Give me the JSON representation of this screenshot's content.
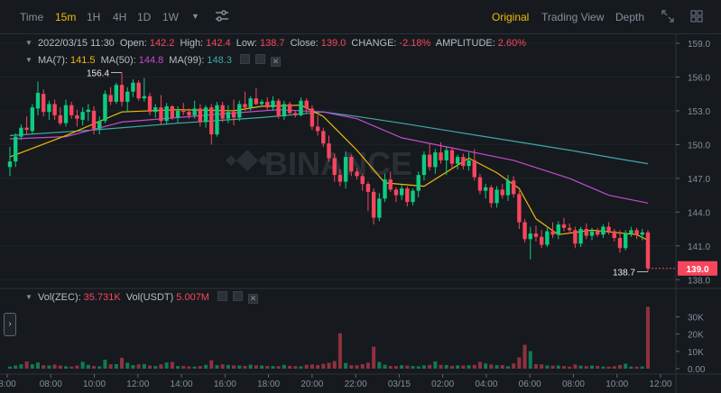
{
  "toolbar": {
    "intervals": [
      {
        "label": "Time",
        "active": false
      },
      {
        "label": "15m",
        "active": true
      },
      {
        "label": "1H",
        "active": false
      },
      {
        "label": "4H",
        "active": false
      },
      {
        "label": "1D",
        "active": false
      },
      {
        "label": "1W",
        "active": false
      }
    ],
    "views": [
      {
        "label": "Original",
        "active": true
      },
      {
        "label": "Trading View",
        "active": false
      },
      {
        "label": "Depth",
        "active": false
      }
    ]
  },
  "ohlc_legend": {
    "datetime": "2022/03/15 11:30",
    "open_label": "Open:",
    "open": "142.2",
    "high_label": "High:",
    "high": "142.4",
    "low_label": "Low:",
    "low": "138.7",
    "close_label": "Close:",
    "close": "139.0",
    "change_label": "CHANGE:",
    "change": "-2.18%",
    "amplitude_label": "AMPLITUDE:",
    "amplitude": "2.60%"
  },
  "ma_legend": {
    "ma7_label": "MA(7):",
    "ma7": "141.5",
    "ma50_label": "MA(50):",
    "ma50": "144.8",
    "ma99_label": "MA(99):",
    "ma99": "148.3"
  },
  "volume_legend": {
    "vol_zec_label": "Vol(ZEC):",
    "vol_zec": "35.731K",
    "vol_usdt_label": "Vol(USDT)",
    "vol_usdt": "5.007M"
  },
  "watermark": "BINANCE",
  "colors": {
    "up": "#0ecb81",
    "down": "#f6465d",
    "ma7": "#f0b90b",
    "ma50": "#c34bd1",
    "ma99": "#41a8a6",
    "accent": "#f0b90b",
    "background": "#161a1e"
  },
  "chart_data": [
    {
      "type": "candlestick",
      "symbol": "ZEC/USDT",
      "interval": "15m",
      "y_ticks": [
        "159.0",
        "156.0",
        "153.0",
        "150.0",
        "147.0",
        "144.0",
        "141.0",
        "138.0"
      ],
      "ylim": [
        137.3,
        159.8
      ],
      "x_ticks": [
        "8:00",
        "08:00",
        "10:00",
        "12:00",
        "14:00",
        "16:00",
        "18:00",
        "20:00",
        "22:00",
        "03/15",
        "02:00",
        "04:00",
        "06:00",
        "08:00",
        "10:00",
        "12:00"
      ],
      "last_price": "139.0",
      "max_label": "156.4",
      "min_label": "138.7",
      "candles": [
        [
          148.0,
          149.8,
          147.2,
          148.5
        ],
        [
          148.5,
          151.0,
          148.0,
          150.7
        ],
        [
          150.7,
          151.8,
          150.4,
          151.5
        ],
        [
          151.5,
          152.5,
          150.9,
          151.3
        ],
        [
          151.2,
          153.6,
          150.9,
          153.3
        ],
        [
          153.2,
          155.6,
          152.6,
          154.6
        ],
        [
          154.5,
          154.9,
          152.5,
          152.9
        ],
        [
          152.9,
          153.9,
          152.2,
          153.6
        ],
        [
          153.6,
          154.0,
          152.2,
          152.6
        ],
        [
          152.6,
          153.3,
          151.7,
          151.9
        ],
        [
          151.9,
          154.0,
          151.6,
          153.5
        ],
        [
          153.5,
          153.8,
          152.3,
          152.6
        ],
        [
          152.6,
          153.1,
          151.6,
          152.3
        ],
        [
          152.2,
          153.3,
          151.7,
          152.9
        ],
        [
          152.9,
          153.6,
          152.1,
          153.1
        ],
        [
          153.0,
          153.4,
          150.9,
          151.4
        ],
        [
          151.4,
          152.5,
          150.9,
          152.1
        ],
        [
          152.1,
          154.8,
          151.9,
          154.5
        ],
        [
          154.4,
          155.1,
          153.5,
          153.8
        ],
        [
          153.8,
          155.5,
          153.6,
          155.3
        ],
        [
          155.3,
          156.4,
          153.4,
          153.8
        ],
        [
          153.8,
          155.1,
          152.9,
          154.7
        ],
        [
          154.7,
          155.8,
          154.2,
          155.5
        ],
        [
          155.5,
          155.7,
          153.9,
          154.1
        ],
        [
          154.1,
          155.9,
          153.8,
          154.3
        ],
        [
          154.3,
          154.6,
          152.6,
          152.9
        ],
        [
          152.9,
          153.6,
          152.4,
          153.3
        ],
        [
          153.3,
          154.4,
          151.8,
          152.1
        ],
        [
          152.1,
          153.7,
          151.8,
          153.4
        ],
        [
          153.4,
          153.5,
          152.2,
          152.4
        ],
        [
          152.4,
          153.4,
          151.9,
          153.0
        ],
        [
          153.0,
          153.7,
          152.6,
          152.9
        ],
        [
          152.9,
          153.2,
          152.3,
          152.6
        ],
        [
          152.6,
          153.9,
          152.3,
          153.2
        ],
        [
          153.2,
          153.6,
          151.6,
          152.0
        ],
        [
          152.0,
          153.5,
          151.5,
          153.3
        ],
        [
          153.3,
          153.6,
          150.0,
          150.9
        ],
        [
          150.9,
          153.8,
          150.7,
          153.5
        ],
        [
          153.5,
          153.8,
          152.0,
          152.3
        ],
        [
          152.3,
          153.5,
          151.9,
          152.9
        ],
        [
          152.9,
          154.0,
          151.7,
          152.4
        ],
        [
          152.4,
          153.9,
          152.1,
          153.6
        ],
        [
          153.6,
          154.7,
          153.0,
          153.3
        ],
        [
          153.3,
          154.3,
          153.0,
          154.1
        ],
        [
          154.1,
          155.0,
          153.5,
          153.6
        ],
        [
          153.6,
          154.0,
          153.4,
          153.8
        ],
        [
          153.8,
          154.2,
          153.0,
          153.3
        ],
        [
          153.3,
          154.3,
          153.0,
          153.9
        ],
        [
          153.9,
          154.1,
          152.3,
          152.5
        ],
        [
          152.5,
          153.9,
          152.2,
          153.6
        ],
        [
          153.6,
          153.8,
          152.7,
          152.8
        ],
        [
          152.8,
          153.0,
          152.4,
          152.6
        ],
        [
          152.6,
          154.2,
          152.5,
          153.9
        ],
        [
          153.9,
          154.1,
          152.8,
          153.2
        ],
        [
          153.2,
          153.5,
          151.3,
          151.6
        ],
        [
          151.6,
          152.6,
          150.8,
          151.2
        ],
        [
          151.2,
          151.5,
          149.8,
          150.1
        ],
        [
          150.1,
          150.8,
          148.5,
          148.8
        ],
        [
          148.8,
          149.2,
          146.7,
          147.3
        ],
        [
          147.3,
          147.8,
          146.3,
          146.7
        ],
        [
          146.7,
          149.4,
          146.1,
          148.9
        ],
        [
          148.9,
          149.1,
          147.2,
          147.6
        ],
        [
          147.6,
          147.9,
          146.9,
          147.2
        ],
        [
          147.2,
          147.4,
          145.9,
          146.5
        ],
        [
          146.5,
          146.7,
          144.1,
          145.8
        ],
        [
          145.8,
          146.1,
          142.9,
          143.5
        ],
        [
          143.5,
          145.7,
          143.2,
          145.2
        ],
        [
          145.2,
          147.4,
          144.9,
          146.9
        ],
        [
          146.9,
          147.6,
          145.8,
          146.0
        ],
        [
          146.0,
          146.2,
          144.9,
          145.5
        ],
        [
          145.5,
          146.4,
          145.1,
          146.1
        ],
        [
          146.1,
          146.3,
          144.5,
          144.9
        ],
        [
          144.9,
          146.1,
          144.6,
          145.9
        ],
        [
          145.9,
          147.6,
          145.3,
          147.3
        ],
        [
          147.3,
          149.4,
          146.8,
          149.1
        ],
        [
          149.1,
          150.1,
          147.7,
          148.0
        ],
        [
          148.0,
          149.6,
          147.4,
          149.3
        ],
        [
          149.3,
          150.2,
          148.3,
          148.6
        ],
        [
          148.6,
          149.8,
          147.3,
          149.5
        ],
        [
          149.5,
          149.7,
          147.8,
          148.3
        ],
        [
          148.3,
          149.1,
          147.8,
          148.9
        ],
        [
          148.9,
          149.2,
          147.8,
          148.1
        ],
        [
          148.1,
          149.3,
          147.7,
          148.6
        ],
        [
          148.6,
          149.6,
          146.8,
          147.1
        ],
        [
          147.1,
          147.4,
          145.6,
          145.9
        ],
        [
          145.9,
          146.5,
          145.2,
          146.2
        ],
        [
          146.2,
          146.4,
          144.4,
          144.8
        ],
        [
          144.8,
          146.3,
          144.4,
          146.0
        ],
        [
          146.0,
          146.5,
          145.2,
          145.5
        ],
        [
          145.5,
          147.3,
          145.0,
          146.8
        ],
        [
          146.8,
          147.2,
          145.3,
          145.6
        ],
        [
          145.6,
          145.9,
          142.5,
          143.1
        ],
        [
          143.1,
          143.4,
          141.3,
          141.6
        ],
        [
          141.6,
          142.7,
          139.8,
          142.1
        ],
        [
          142.1,
          142.8,
          141.4,
          141.8
        ],
        [
          141.8,
          142.4,
          140.8,
          141.1
        ],
        [
          141.1,
          142.6,
          140.9,
          142.3
        ],
        [
          142.3,
          143.1,
          141.7,
          142.0
        ],
        [
          142.0,
          143.2,
          141.6,
          142.9
        ],
        [
          142.9,
          143.5,
          142.3,
          142.6
        ],
        [
          142.6,
          143.0,
          142.1,
          142.4
        ],
        [
          142.4,
          142.7,
          140.8,
          141.2
        ],
        [
          141.2,
          142.7,
          140.9,
          142.5
        ],
        [
          142.5,
          143.0,
          141.6,
          141.9
        ],
        [
          141.9,
          142.6,
          141.5,
          142.3
        ],
        [
          142.3,
          142.6,
          141.8,
          142.0
        ],
        [
          142.0,
          142.9,
          141.7,
          142.7
        ],
        [
          142.7,
          143.1,
          142.0,
          142.3
        ],
        [
          142.3,
          142.5,
          141.4,
          141.7
        ],
        [
          141.7,
          142.4,
          140.4,
          140.8
        ],
        [
          140.8,
          142.4,
          140.6,
          142.1
        ],
        [
          142.1,
          142.7,
          141.8,
          142.4
        ],
        [
          142.4,
          142.6,
          141.6,
          142.0
        ],
        [
          142.0,
          142.5,
          141.5,
          142.2
        ],
        [
          142.2,
          142.4,
          138.7,
          139.0
        ]
      ],
      "ma7": [
        [
          0,
          148.9
        ],
        [
          10,
          150.8
        ],
        [
          20,
          152.9
        ],
        [
          30,
          153.1
        ],
        [
          40,
          153.0
        ],
        [
          45,
          153.4
        ],
        [
          52,
          153.5
        ],
        [
          56,
          152.5
        ],
        [
          62,
          149.5
        ],
        [
          67,
          146.6
        ],
        [
          74,
          146.3
        ],
        [
          82,
          148.8
        ],
        [
          87,
          147.5
        ],
        [
          91,
          146.1
        ],
        [
          94,
          143.4
        ],
        [
          98,
          142.0
        ],
        [
          104,
          142.4
        ],
        [
          112,
          142.0
        ],
        [
          114,
          141.5
        ]
      ],
      "ma50": [
        [
          0,
          150.5
        ],
        [
          10,
          150.7
        ],
        [
          20,
          152.0
        ],
        [
          30,
          152.4
        ],
        [
          40,
          152.8
        ],
        [
          48,
          153.1
        ],
        [
          56,
          152.9
        ],
        [
          62,
          152.3
        ],
        [
          70,
          150.6
        ],
        [
          80,
          149.6
        ],
        [
          90,
          148.6
        ],
        [
          100,
          147.0
        ],
        [
          107,
          145.5
        ],
        [
          114,
          144.8
        ]
      ],
      "ma99": [
        [
          0,
          150.8
        ],
        [
          15,
          151.3
        ],
        [
          30,
          151.9
        ],
        [
          45,
          152.4
        ],
        [
          56,
          152.9
        ],
        [
          62,
          152.5
        ],
        [
          70,
          151.9
        ],
        [
          80,
          151.1
        ],
        [
          90,
          150.3
        ],
        [
          100,
          149.5
        ],
        [
          108,
          148.8
        ],
        [
          114,
          148.3
        ]
      ],
      "volume_ticks": [
        "30K",
        "20K",
        "10K",
        "0.00"
      ],
      "volume_ylim": [
        0,
        36000
      ],
      "volume": [
        1200,
        1800,
        2500,
        4200,
        2500,
        3600,
        2000,
        1800,
        2400,
        1800,
        1400,
        1200,
        1800,
        4000,
        2200,
        1500,
        1300,
        5200,
        2500,
        2600,
        6300,
        3400,
        2100,
        2500,
        2700,
        1800,
        1500,
        2500,
        3600,
        3900,
        1500,
        1600,
        1300,
        1200,
        1500,
        2200,
        4800,
        2000,
        2500,
        2100,
        1900,
        1800,
        1600,
        2300,
        1900,
        1800,
        1500,
        1500,
        1400,
        2200,
        1600,
        1500,
        1300,
        2200,
        2400,
        2100,
        2800,
        3400,
        4400,
        20500,
        3300,
        2000,
        1900,
        2600,
        3500,
        12700,
        3900,
        2300,
        1500,
        1500,
        2000,
        1800,
        1500,
        1300,
        1900,
        2200,
        4200,
        2200,
        2100,
        1600,
        1900,
        1800,
        2000,
        2200,
        3900,
        3000,
        2400,
        2000,
        2100,
        1400,
        3000,
        6500,
        13800,
        10200,
        2600,
        2500,
        1800,
        1700,
        1800,
        1500,
        1200,
        2400,
        1700,
        1500,
        1800,
        1600,
        1200,
        1200,
        1400,
        2100,
        2900,
        1200,
        1100,
        1300,
        35731
      ]
    }
  ]
}
